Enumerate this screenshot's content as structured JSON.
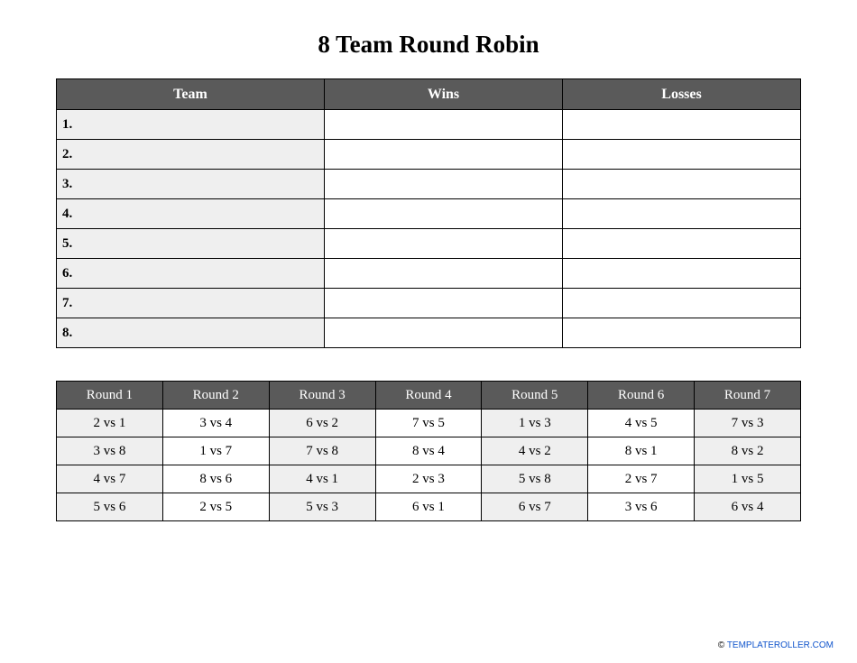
{
  "title": "8 Team Round Robin",
  "colors": {
    "header_bg": "#5a5a5a",
    "header_text": "#ffffff",
    "row_shade": "#efefef",
    "row_plain": "#ffffff",
    "border": "#000000",
    "link": "#1155cc"
  },
  "standings": {
    "columns": [
      "Team",
      "Wins",
      "Losses"
    ],
    "col_widths_pct": [
      36,
      32,
      32
    ],
    "rows": [
      {
        "label": "1.",
        "wins": "",
        "losses": ""
      },
      {
        "label": "2.",
        "wins": "",
        "losses": ""
      },
      {
        "label": "3.",
        "wins": "",
        "losses": ""
      },
      {
        "label": "4.",
        "wins": "",
        "losses": ""
      },
      {
        "label": "5.",
        "wins": "",
        "losses": ""
      },
      {
        "label": "6.",
        "wins": "",
        "losses": ""
      },
      {
        "label": "7.",
        "wins": "",
        "losses": ""
      },
      {
        "label": "8.",
        "wins": "",
        "losses": ""
      }
    ]
  },
  "schedule": {
    "columns": [
      "Round 1",
      "Round 2",
      "Round 3",
      "Round 4",
      "Round 5",
      "Round 6",
      "Round 7"
    ],
    "shaded_columns": [
      0,
      2,
      4,
      6
    ],
    "rows": [
      [
        "2 vs 1",
        "3 vs 4",
        "6 vs 2",
        "7 vs 5",
        "1 vs 3",
        "4 vs 5",
        "7 vs 3"
      ],
      [
        "3 vs 8",
        "1 vs 7",
        "7 vs 8",
        "8 vs 4",
        "4 vs 2",
        "8 vs 1",
        "8 vs 2"
      ],
      [
        "4 vs 7",
        "8 vs 6",
        "4 vs 1",
        "2 vs 3",
        "5 vs 8",
        "2 vs 7",
        "1 vs 5"
      ],
      [
        "5 vs 6",
        "2 vs 5",
        "5 vs 3",
        "6 vs 1",
        "6 vs 7",
        "3 vs 6",
        "6 vs 4"
      ]
    ]
  },
  "footer": {
    "prefix": "© ",
    "link_text": "TEMPLATEROLLER.COM"
  }
}
